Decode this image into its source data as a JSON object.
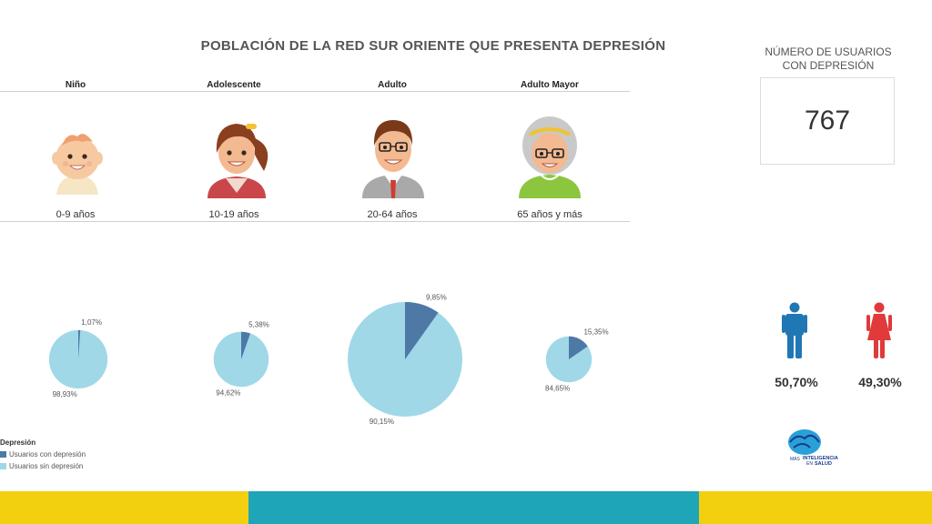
{
  "title": "POBLACIÓN DE LA RED SUR ORIENTE QUE PRESENTA DEPRESIÓN",
  "categories": [
    {
      "name": "Niño",
      "age": "0-9 años"
    },
    {
      "name": "Adolescente",
      "age": "10-19 años"
    },
    {
      "name": "Adulto",
      "age": "20-64 años"
    },
    {
      "name": "Adulto Mayor",
      "age": "65 años y más"
    }
  ],
  "kpi": {
    "title_line1": "NÚMERO DE USUARIOS",
    "title_line2": "CON DEPRESIÓN",
    "value": "767"
  },
  "gender": {
    "male_pct": "50,70%",
    "female_pct": "49,30%",
    "male_color": "#1f77b4",
    "female_color": "#e03a3a"
  },
  "legend": {
    "title": "Depresión",
    "with_label": "Usuarios con depresión",
    "without_label": "Usuarios sin depresión"
  },
  "colors": {
    "with": "#4e79a7",
    "without": "#a0d8e8",
    "band_yellow": "#f2d00f",
    "band_teal": "#1fa5b8"
  },
  "logo": {
    "line1": "MÁS",
    "line2": "INTELIGENCIA",
    "line3": "EN",
    "line4": "SALUD"
  },
  "chart_data": {
    "type": "pie",
    "series": [
      {
        "category": "Niño",
        "with_pct": 1.07,
        "without_pct": 98.93,
        "with_label": "1,07%",
        "without_label": "98,93%",
        "relative_size": 0.51
      },
      {
        "category": "Adolescente",
        "with_pct": 5.38,
        "without_pct": 94.62,
        "with_label": "5,38%",
        "without_label": "94,62%",
        "relative_size": 0.48
      },
      {
        "category": "Adulto",
        "with_pct": 9.85,
        "without_pct": 90.15,
        "with_label": "9,85%",
        "without_label": "90,15%",
        "relative_size": 1.0
      },
      {
        "category": "Adulto Mayor",
        "with_pct": 15.35,
        "without_pct": 84.65,
        "with_label": "15,35%",
        "without_label": "84,65%",
        "relative_size": 0.4
      }
    ]
  }
}
